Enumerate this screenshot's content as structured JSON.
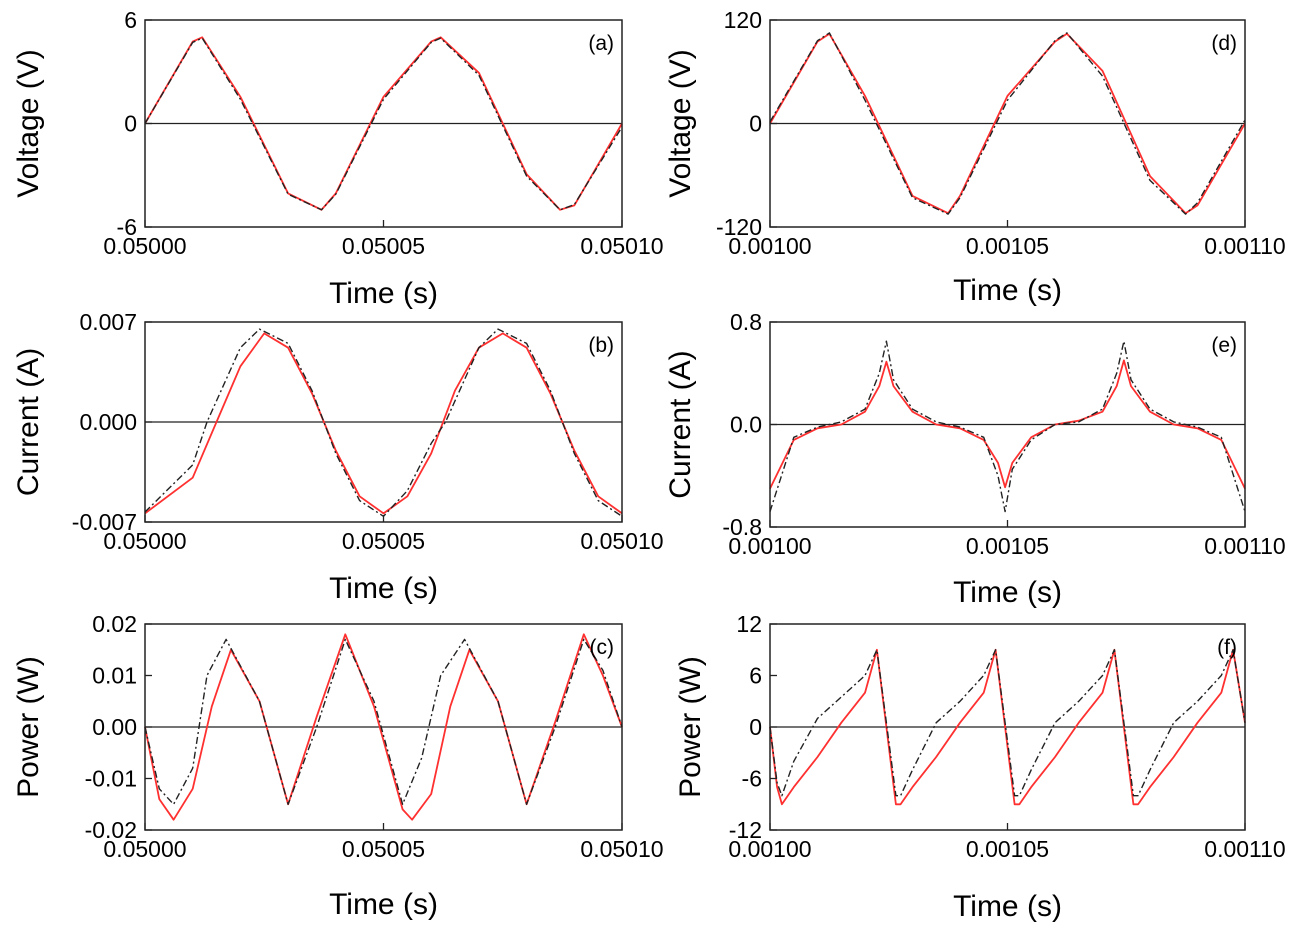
{
  "chart_data": [
    {
      "type": "line",
      "panel_label": "(a)",
      "xlabel": "Time (s)",
      "ylabel": "Voltage (V)",
      "xlim": [
        0.05,
        0.0501
      ],
      "ylim": [
        -6,
        6
      ],
      "xticks": [
        0.05,
        0.05005,
        0.0501
      ],
      "xtick_labels": [
        "0.05000",
        "0.05005",
        "0.05010"
      ],
      "yticks": [
        -6,
        0,
        6
      ],
      "ytick_labels": [
        "-6",
        "0",
        "6"
      ],
      "zero_line": true,
      "grid": false,
      "series": [
        {
          "style": "solid",
          "color": "#ff3030",
          "x": [
            0.05,
            0.05001,
            0.050012,
            0.05002,
            0.05003,
            0.050037,
            0.05004,
            0.05005,
            0.05006,
            0.050062,
            0.05007,
            0.05008,
            0.050087,
            0.05009,
            0.0501
          ],
          "y": [
            0,
            4.75,
            5.0,
            1.55,
            -4.05,
            -5.0,
            -4.05,
            1.55,
            4.75,
            5.0,
            2.94,
            -2.94,
            -5.0,
            -4.75,
            0
          ]
        },
        {
          "style": "dashdot",
          "color": "#222222",
          "x": [
            0.05,
            0.05001,
            0.050012,
            0.05002,
            0.05003,
            0.050037,
            0.05004,
            0.05005,
            0.05006,
            0.050062,
            0.05007,
            0.05008,
            0.050087,
            0.05009,
            0.0501
          ],
          "y": [
            0,
            4.7,
            4.95,
            1.4,
            -4.1,
            -5.0,
            -4.1,
            1.4,
            4.7,
            4.95,
            2.8,
            -3.05,
            -5.0,
            -4.7,
            -0.2
          ]
        }
      ]
    },
    {
      "type": "line",
      "panel_label": "(b)",
      "xlabel": "Time (s)",
      "ylabel": "Current (A)",
      "xlim": [
        0.05,
        0.0501
      ],
      "ylim": [
        -0.007,
        0.007
      ],
      "xticks": [
        0.05,
        0.05005,
        0.0501
      ],
      "xtick_labels": [
        "0.05000",
        "0.05005",
        "0.05010"
      ],
      "yticks": [
        -0.007,
        0,
        0.007
      ],
      "ytick_labels": [
        "-0.007",
        "0.000",
        "0.007"
      ],
      "zero_line": true,
      "grid": false,
      "series": [
        {
          "style": "solid",
          "color": "#ff3030",
          "x": [
            0.05,
            0.05001,
            0.050015,
            0.05002,
            0.050025,
            0.05003,
            0.050035,
            0.05004,
            0.050045,
            0.05005,
            0.050055,
            0.05006,
            0.050065,
            0.05007,
            0.050075,
            0.05008,
            0.050085,
            0.05009,
            0.050095,
            0.0501
          ],
          "y": [
            -0.0064,
            -0.0039,
            0.0,
            0.0039,
            0.0062,
            0.0052,
            0.002,
            -0.002,
            -0.0052,
            -0.0064,
            -0.0052,
            -0.0022,
            0.0022,
            0.0052,
            0.0062,
            0.0052,
            0.002,
            -0.002,
            -0.0052,
            -0.0064
          ]
        },
        {
          "style": "dashdot",
          "color": "#222222",
          "x": [
            0.05,
            0.05001,
            0.050013,
            0.05002,
            0.050024,
            0.05003,
            0.050035,
            0.05004,
            0.050045,
            0.05005,
            0.050055,
            0.05006,
            0.050063,
            0.05007,
            0.050074,
            0.05008,
            0.050085,
            0.05009,
            0.050095,
            0.0501
          ],
          "y": [
            -0.0063,
            -0.003,
            0.0,
            0.0052,
            0.0065,
            0.0055,
            0.0022,
            -0.0022,
            -0.0055,
            -0.0066,
            -0.0048,
            -0.0015,
            0.0,
            0.0052,
            0.0065,
            0.0055,
            0.0022,
            -0.0022,
            -0.0055,
            -0.0066
          ]
        }
      ]
    },
    {
      "type": "line",
      "panel_label": "(c)",
      "xlabel": "Time (s)",
      "ylabel": "Power (W)",
      "xlim": [
        0.05,
        0.0501
      ],
      "ylim": [
        -0.02,
        0.02
      ],
      "xticks": [
        0.05,
        0.05005,
        0.0501
      ],
      "xtick_labels": [
        "0.05000",
        "0.05005",
        "0.05010"
      ],
      "yticks": [
        -0.02,
        -0.01,
        0,
        0.01,
        0.02
      ],
      "ytick_labels": [
        "-0.02",
        "-0.01",
        "0.00",
        "0.01",
        "0.02"
      ],
      "zero_line": true,
      "grid": false,
      "series": [
        {
          "style": "solid",
          "color": "#ff3030",
          "x": [
            0.05,
            0.050003,
            0.050006,
            0.05001,
            0.050014,
            0.050018,
            0.050024,
            0.05003,
            0.050036,
            0.050042,
            0.050048,
            0.050054,
            0.050056,
            0.05006,
            0.050064,
            0.050068,
            0.050074,
            0.05008,
            0.050086,
            0.050092,
            0.050096,
            0.0501
          ],
          "y": [
            0.0,
            -0.014,
            -0.018,
            -0.012,
            0.004,
            0.015,
            0.005,
            -0.015,
            0.002,
            0.018,
            0.004,
            -0.016,
            -0.018,
            -0.013,
            0.004,
            0.015,
            0.005,
            -0.015,
            0.001,
            0.018,
            0.01,
            0.0
          ]
        },
        {
          "style": "dashdot",
          "color": "#222222",
          "x": [
            0.05,
            0.050003,
            0.050006,
            0.05001,
            0.050013,
            0.050017,
            0.050024,
            0.05003,
            0.050036,
            0.050042,
            0.050048,
            0.050054,
            0.050058,
            0.050062,
            0.050067,
            0.050074,
            0.05008,
            0.050086,
            0.050092,
            0.050096,
            0.0501
          ],
          "y": [
            0.0,
            -0.012,
            -0.015,
            -0.008,
            0.01,
            0.017,
            0.005,
            -0.015,
            0.0,
            0.017,
            0.005,
            -0.015,
            -0.006,
            0.01,
            0.017,
            0.005,
            -0.015,
            0.0,
            0.017,
            0.011,
            0.0
          ]
        }
      ]
    },
    {
      "type": "line",
      "panel_label": "(d)",
      "xlabel": "Time (s)",
      "ylabel": "Voltage (V)",
      "xlim": [
        0.001,
        0.0011
      ],
      "ylim": [
        -120,
        120
      ],
      "xticks": [
        0.001,
        0.00105,
        0.0011
      ],
      "xtick_labels": [
        "0.00100",
        "0.00105",
        "0.00110"
      ],
      "yticks": [
        -120,
        0,
        120
      ],
      "ytick_labels": [
        "-120",
        "0",
        "120"
      ],
      "zero_line": true,
      "grid": false,
      "series": [
        {
          "style": "solid",
          "color": "#ff3030",
          "x": [
            0.001,
            0.00101,
            0.0010125,
            0.00102,
            0.00103,
            0.0010375,
            0.00104,
            0.00105,
            0.00106,
            0.0010625,
            0.00107,
            0.00108,
            0.0010875,
            0.00109,
            0.0011
          ],
          "y": [
            0,
            95,
            104,
            32,
            -84,
            -104,
            -84,
            32,
            95,
            104,
            61,
            -61,
            -104,
            -95,
            0
          ]
        },
        {
          "style": "dashdot",
          "color": "#222222",
          "x": [
            0.001,
            0.00101,
            0.0010125,
            0.00102,
            0.00103,
            0.0010375,
            0.00104,
            0.00105,
            0.00106,
            0.0010625,
            0.00107,
            0.00108,
            0.0010875,
            0.00109,
            0.0011
          ],
          "y": [
            2,
            96,
            105,
            27,
            -86,
            -105,
            -86,
            27,
            96,
            105,
            55,
            -66,
            -105,
            -92,
            4
          ]
        }
      ]
    },
    {
      "type": "line",
      "panel_label": "(e)",
      "xlabel": "Time (s)",
      "ylabel": "Current (A)",
      "xlim": [
        0.001,
        0.0011
      ],
      "ylim": [
        -0.8,
        0.8
      ],
      "xticks": [
        0.001,
        0.00105,
        0.0011
      ],
      "xtick_labels": [
        "0.00100",
        "0.00105",
        "0.00110"
      ],
      "yticks": [
        -0.8,
        0,
        0.8
      ],
      "ytick_labels": [
        "-0.8",
        "0.0",
        "0.8"
      ],
      "zero_line": true,
      "grid": false,
      "series": [
        {
          "style": "solid",
          "color": "#ff3030",
          "x": [
            0.001,
            0.001005,
            0.00101,
            0.001015,
            0.00102,
            0.001023,
            0.0010245,
            0.001026,
            0.00103,
            0.001035,
            0.00104,
            0.001045,
            0.001048,
            0.0010495,
            0.001051,
            0.001055,
            0.00106,
            0.001065,
            0.00107,
            0.001073,
            0.0010745,
            0.001076,
            0.00108,
            0.001085,
            0.00109,
            0.001095,
            0.0011
          ],
          "y": [
            -0.5,
            -0.12,
            -0.03,
            0.0,
            0.1,
            0.3,
            0.49,
            0.3,
            0.1,
            0.0,
            -0.03,
            -0.12,
            -0.3,
            -0.49,
            -0.3,
            -0.1,
            0.0,
            0.03,
            0.1,
            0.3,
            0.5,
            0.3,
            0.1,
            0.0,
            -0.03,
            -0.12,
            -0.5
          ]
        },
        {
          "style": "dashdot",
          "color": "#222222",
          "x": [
            0.001,
            0.001005,
            0.00101,
            0.001015,
            0.00102,
            0.001023,
            0.0010245,
            0.001026,
            0.00103,
            0.001035,
            0.00104,
            0.001045,
            0.001048,
            0.0010495,
            0.001051,
            0.001055,
            0.00106,
            0.001065,
            0.00107,
            0.001073,
            0.0010745,
            0.001076,
            0.00108,
            0.001085,
            0.00109,
            0.001095,
            0.0011
          ],
          "y": [
            -0.68,
            -0.1,
            -0.02,
            0.02,
            0.12,
            0.4,
            0.65,
            0.35,
            0.12,
            0.02,
            -0.02,
            -0.1,
            -0.4,
            -0.68,
            -0.35,
            -0.12,
            0.0,
            0.02,
            0.12,
            0.4,
            0.65,
            0.35,
            0.12,
            0.02,
            -0.02,
            -0.1,
            -0.68
          ]
        }
      ]
    },
    {
      "type": "line",
      "panel_label": "(f)",
      "xlabel": "Time (s)",
      "ylabel": "Power (W)",
      "xlim": [
        0.001,
        0.0011
      ],
      "ylim": [
        -12,
        12
      ],
      "xticks": [
        0.001,
        0.00105,
        0.0011
      ],
      "xtick_labels": [
        "0.00100",
        "0.00105",
        "0.00110"
      ],
      "yticks": [
        -12,
        -6,
        0,
        6,
        12
      ],
      "ytick_labels": [
        "-12",
        "-6",
        "0",
        "6",
        "12"
      ],
      "zero_line": true,
      "grid": false,
      "series": [
        {
          "style": "solid",
          "color": "#ff3030",
          "x": [
            0.001,
            0.0010015,
            0.0010025,
            0.001005,
            0.00101,
            0.001015,
            0.00102,
            0.0010225,
            0.0010265,
            0.0010275,
            0.00103,
            0.001035,
            0.00104,
            0.001045,
            0.0010475,
            0.0010515,
            0.0010525,
            0.001055,
            0.00106,
            0.001065,
            0.00107,
            0.0010725,
            0.0010765,
            0.0010775,
            0.00108,
            0.001085,
            0.00109,
            0.001095,
            0.0010975,
            0.0011
          ],
          "y": [
            0,
            -7,
            -9,
            -7,
            -3.5,
            0.5,
            4,
            9,
            -9,
            -9,
            -7,
            -3.5,
            0.5,
            4,
            9,
            -9,
            -9,
            -7,
            -3.5,
            0.5,
            4,
            9,
            -9,
            -9,
            -7,
            -3.5,
            0.5,
            4,
            9,
            0.5
          ]
        },
        {
          "style": "dashdot",
          "color": "#222222",
          "x": [
            0.001,
            0.0010015,
            0.0010025,
            0.001005,
            0.00101,
            0.001015,
            0.00102,
            0.0010225,
            0.0010265,
            0.0010275,
            0.00103,
            0.001035,
            0.00104,
            0.001045,
            0.0010475,
            0.0010515,
            0.0010525,
            0.001055,
            0.00106,
            0.001065,
            0.00107,
            0.0010725,
            0.0010765,
            0.0010775,
            0.00108,
            0.001085,
            0.00109,
            0.001095,
            0.0010975,
            0.0011
          ],
          "y": [
            0,
            -6.5,
            -8,
            -4,
            1,
            3.5,
            6,
            9,
            -8,
            -8,
            -5,
            0.5,
            3,
            6,
            9,
            -8,
            -8,
            -5,
            0.5,
            3,
            6,
            9,
            -8,
            -8,
            -5,
            0.5,
            3,
            6,
            9,
            0.5
          ]
        }
      ]
    }
  ]
}
